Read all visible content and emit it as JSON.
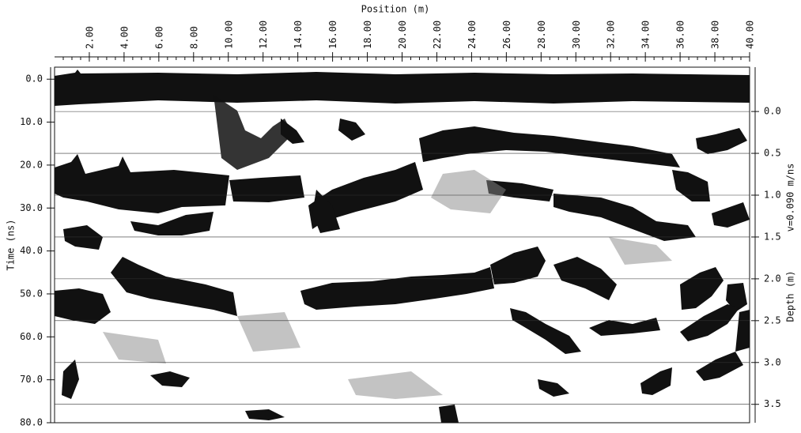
{
  "chart_data": {
    "type": "radargram",
    "xlabel": "Position (m)",
    "ylabel": "Time (ns)",
    "y2label": "Depth (m)",
    "annotation": "v=0.090 m/ns",
    "xlim": [
      0,
      40
    ],
    "xticks": [
      {
        "value": 2,
        "label": "2.00"
      },
      {
        "value": 4,
        "label": "4.00"
      },
      {
        "value": 6,
        "label": "6.00"
      },
      {
        "value": 8,
        "label": "8.00"
      },
      {
        "value": 10,
        "label": "10.00"
      },
      {
        "value": 12,
        "label": "12.00"
      },
      {
        "value": 14,
        "label": "14.00"
      },
      {
        "value": 16,
        "label": "16.00"
      },
      {
        "value": 18,
        "label": "18.00"
      },
      {
        "value": 20,
        "label": "20.00"
      },
      {
        "value": 22,
        "label": "22.00"
      },
      {
        "value": 24,
        "label": "24.00"
      },
      {
        "value": 26,
        "label": "26.00"
      },
      {
        "value": 28,
        "label": "28.00"
      },
      {
        "value": 30,
        "label": "30.00"
      },
      {
        "value": 32,
        "label": "32.00"
      },
      {
        "value": 34,
        "label": "34.00"
      },
      {
        "value": 36,
        "label": "36.00"
      },
      {
        "value": 38,
        "label": "38.00"
      },
      {
        "value": 40,
        "label": "40.00"
      }
    ],
    "ylim": [
      -2.8,
      80
    ],
    "yticks": [
      {
        "value": 0,
        "label": "0.0"
      },
      {
        "value": 10,
        "label": "10.0"
      },
      {
        "value": 20,
        "label": "20.0"
      },
      {
        "value": 30,
        "label": "30.0"
      },
      {
        "value": 40,
        "label": "40.0"
      },
      {
        "value": 50,
        "label": "50.0"
      },
      {
        "value": 60,
        "label": "60.0"
      },
      {
        "value": 70,
        "label": "70.0"
      },
      {
        "value": 80,
        "label": "80.0"
      }
    ],
    "y2lim": [
      -0.53,
      3.72
    ],
    "y2ticks": [
      {
        "value": 0,
        "label": "0.0"
      },
      0.5,
      {
        "value": 1,
        "label": "1.0"
      },
      1.5,
      {
        "value": 2,
        "label": "2.0"
      },
      2.5,
      {
        "value": 3,
        "label": "3.0"
      },
      3.5
    ],
    "grid": true
  }
}
